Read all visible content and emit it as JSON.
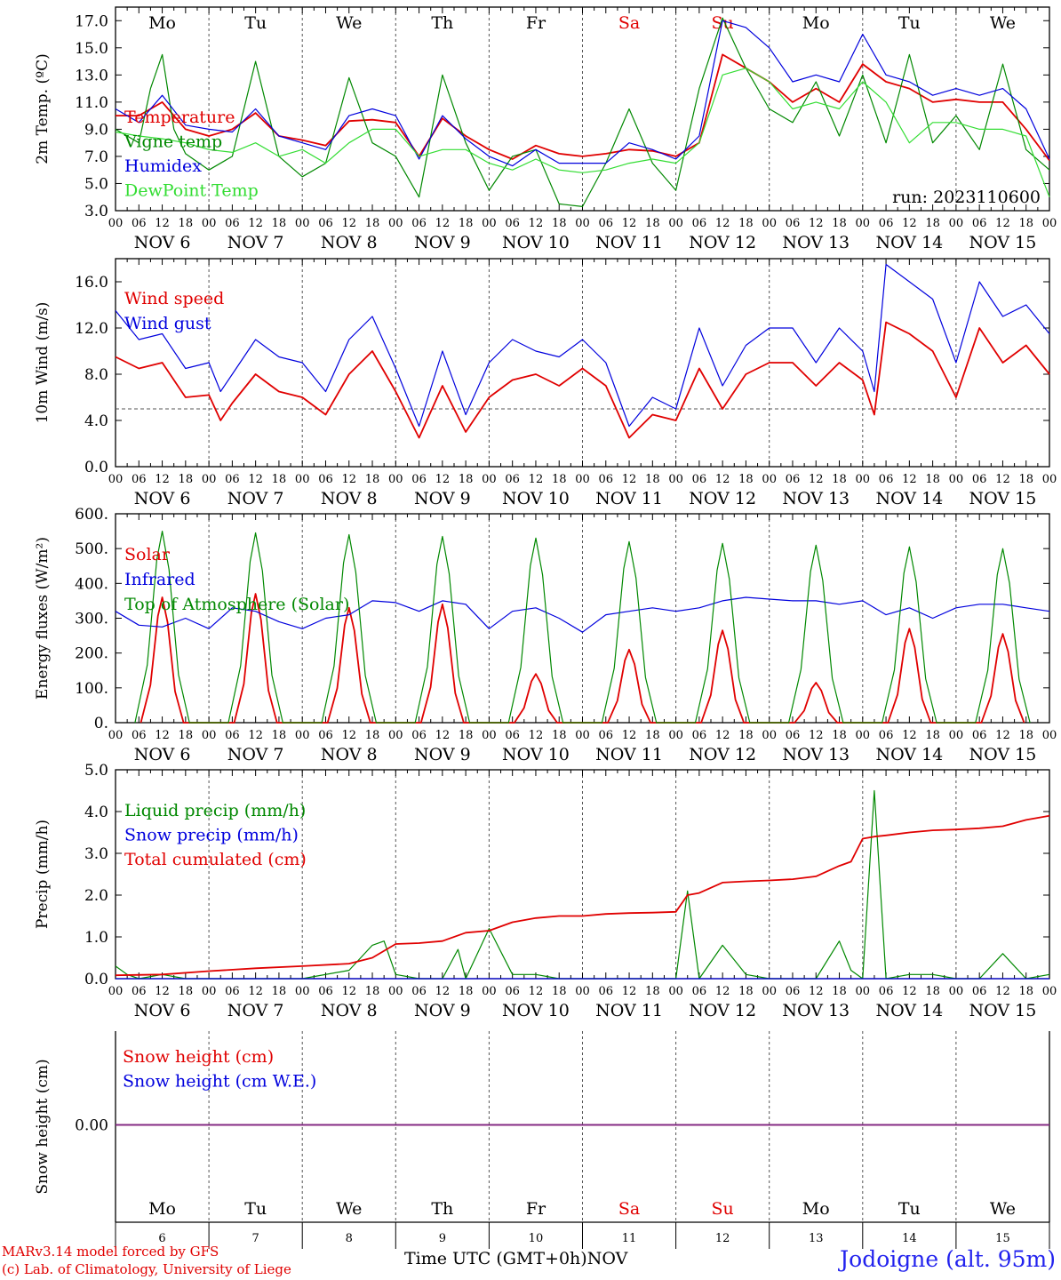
{
  "footer": {
    "credit_line1": "MARv3.14 model forced by GFS",
    "credit_line2": "(c) Lab. of Climatology, University of Liege",
    "x_title": "Time UTC (GMT+0h)",
    "x_month": "NOV",
    "station": "Jodoigne (alt. 95m)"
  },
  "colors": {
    "red": "#e00000",
    "green": "#008800",
    "blue": "#0000dd",
    "lightgreen": "#33dd33",
    "grid": "#555555"
  },
  "weekdays": [
    "Mo",
    "Tu",
    "We",
    "Th",
    "Fr",
    "Sa",
    "Su",
    "Mo",
    "Tu",
    "We"
  ],
  "weekday_colors": [
    "#000000",
    "#000000",
    "#000000",
    "#000000",
    "#000000",
    "#e00000",
    "#e00000",
    "#000000",
    "#000000",
    "#000000"
  ],
  "date_labels": [
    "NOV  6",
    "NOV  7",
    "NOV  8",
    "NOV  9",
    "NOV 10",
    "NOV 11",
    "NOV 12",
    "NOV 13",
    "NOV 14",
    "NOV 15"
  ],
  "hour_labels": [
    "00",
    "06",
    "12",
    "18"
  ],
  "bottom_day_numbers": [
    "6",
    "7",
    "8",
    "9",
    "10",
    "11",
    "12",
    "13",
    "14",
    "15"
  ],
  "chart_data": [
    {
      "type": "line",
      "ylabel": "2m Temp. (ºC)",
      "ylim": [
        3.0,
        18.0
      ],
      "yticks": [
        "3.0",
        "5.0",
        "7.0",
        "9.0",
        "11.0",
        "13.0",
        "15.0",
        "17.0"
      ],
      "annotation": "run: 2023110600",
      "x_unit": "hours since NOV 6 00 UTC",
      "series": [
        {
          "name": "Temperature",
          "color": "#e00000",
          "x": [
            0,
            6,
            12,
            18,
            24,
            30,
            36,
            42,
            48,
            54,
            60,
            66,
            72,
            78,
            84,
            90,
            96,
            102,
            108,
            114,
            120,
            126,
            132,
            138,
            144,
            150,
            156,
            162,
            168,
            174,
            180,
            186,
            192,
            198,
            204,
            210,
            216,
            222,
            228,
            234,
            240
          ],
          "y": [
            10.0,
            10.0,
            11.0,
            9.0,
            8.5,
            9.0,
            10.2,
            8.5,
            8.2,
            7.8,
            9.6,
            9.7,
            9.5,
            7.0,
            9.8,
            8.5,
            7.5,
            6.8,
            7.8,
            7.2,
            7.0,
            7.2,
            7.5,
            7.4,
            7.0,
            8.0,
            14.5,
            13.5,
            12.5,
            11.0,
            12.0,
            11.0,
            13.8,
            12.5,
            12.0,
            11.0,
            11.2,
            11.0,
            11.0,
            9.0,
            6.7
          ]
        },
        {
          "name": "Vigne temp",
          "color": "#008800",
          "x": [
            0,
            6,
            9,
            12,
            15,
            18,
            24,
            30,
            36,
            42,
            48,
            54,
            60,
            66,
            72,
            78,
            84,
            90,
            96,
            102,
            108,
            114,
            120,
            126,
            132,
            138,
            144,
            150,
            156,
            162,
            168,
            174,
            180,
            186,
            192,
            198,
            204,
            210,
            216,
            222,
            228,
            234,
            240
          ],
          "y": [
            9.0,
            8.0,
            12.0,
            14.5,
            9.0,
            7.2,
            6.0,
            7.0,
            14.0,
            7.0,
            5.5,
            6.5,
            12.8,
            8.0,
            7.0,
            4.0,
            13.0,
            8.0,
            4.5,
            7.0,
            7.5,
            3.5,
            3.3,
            6.5,
            10.5,
            6.5,
            4.5,
            12.0,
            17.2,
            13.5,
            10.5,
            9.5,
            12.5,
            8.5,
            13.0,
            8.0,
            14.5,
            8.0,
            10.0,
            7.5,
            13.8,
            7.5,
            6.0
          ]
        },
        {
          "name": "Humidex",
          "color": "#0000dd",
          "x": [
            0,
            6,
            12,
            18,
            24,
            30,
            36,
            42,
            48,
            54,
            60,
            66,
            72,
            78,
            84,
            90,
            96,
            102,
            108,
            114,
            120,
            126,
            132,
            138,
            144,
            150,
            156,
            162,
            168,
            174,
            180,
            186,
            192,
            198,
            204,
            210,
            216,
            222,
            228,
            234,
            240
          ],
          "y": [
            10.5,
            9.5,
            11.5,
            9.3,
            9.0,
            8.8,
            10.5,
            8.5,
            8.0,
            7.5,
            10.0,
            10.5,
            10.0,
            6.8,
            10.0,
            8.3,
            7.0,
            6.3,
            7.5,
            6.5,
            6.5,
            6.5,
            8.0,
            7.5,
            6.8,
            8.5,
            17.0,
            16.5,
            15.0,
            12.5,
            13.0,
            12.5,
            16.0,
            13.0,
            12.5,
            11.5,
            12.0,
            11.5,
            12.0,
            10.5,
            6.8
          ]
        },
        {
          "name": "DewPoint Temp",
          "color": "#33dd33",
          "x": [
            0,
            6,
            12,
            18,
            24,
            30,
            36,
            42,
            48,
            54,
            60,
            66,
            72,
            78,
            84,
            90,
            96,
            102,
            108,
            114,
            120,
            126,
            132,
            138,
            144,
            150,
            156,
            162,
            168,
            174,
            180,
            186,
            192,
            198,
            204,
            210,
            216,
            222,
            228,
            234,
            240
          ],
          "y": [
            8.8,
            8.5,
            8.3,
            8.0,
            7.5,
            7.3,
            8.0,
            7.0,
            7.5,
            6.5,
            8.0,
            9.0,
            9.0,
            7.0,
            7.5,
            7.5,
            6.5,
            6.0,
            6.8,
            6.0,
            5.8,
            6.0,
            6.5,
            6.8,
            6.5,
            8.0,
            13.0,
            13.5,
            12.5,
            10.5,
            11.0,
            10.5,
            12.5,
            11.0,
            8.0,
            9.5,
            9.5,
            9.0,
            9.0,
            8.5,
            4.0
          ]
        }
      ]
    },
    {
      "type": "line",
      "ylabel": "10m Wind (m/s)",
      "ylim": [
        0.0,
        18.0
      ],
      "yticks": [
        "0.0",
        "4.0",
        "8.0",
        "12.0",
        "16.0"
      ],
      "reference_line": 5.0,
      "series": [
        {
          "name": "Wind speed",
          "color": "#e00000",
          "x": [
            0,
            6,
            12,
            18,
            24,
            27,
            30,
            36,
            42,
            48,
            54,
            60,
            66,
            72,
            78,
            84,
            90,
            96,
            102,
            108,
            114,
            120,
            126,
            132,
            138,
            144,
            150,
            156,
            162,
            168,
            174,
            180,
            186,
            192,
            195,
            198,
            204,
            210,
            216,
            222,
            228,
            234,
            240
          ],
          "y": [
            9.5,
            8.5,
            9.0,
            6.0,
            6.2,
            4.0,
            5.5,
            8.0,
            6.5,
            6.0,
            4.5,
            8.0,
            10.0,
            6.5,
            2.5,
            7.0,
            3.0,
            6.0,
            7.5,
            8.0,
            7.0,
            8.5,
            7.0,
            2.5,
            4.5,
            4.0,
            8.5,
            5.0,
            8.0,
            9.0,
            9.0,
            7.0,
            9.0,
            7.5,
            4.5,
            12.5,
            11.5,
            10.0,
            6.0,
            12.0,
            9.0,
            10.5,
            8.0
          ]
        },
        {
          "name": "Wind gust",
          "color": "#0000dd",
          "x": [
            0,
            6,
            12,
            18,
            24,
            27,
            30,
            36,
            42,
            48,
            54,
            60,
            66,
            72,
            78,
            84,
            90,
            96,
            102,
            108,
            114,
            120,
            126,
            132,
            138,
            144,
            150,
            156,
            162,
            168,
            174,
            180,
            186,
            192,
            195,
            198,
            204,
            210,
            216,
            222,
            228,
            234,
            240
          ],
          "y": [
            13.5,
            11.0,
            11.5,
            8.5,
            9.0,
            6.5,
            8.0,
            11.0,
            9.5,
            9.0,
            6.5,
            11.0,
            13.0,
            8.5,
            3.5,
            10.0,
            4.5,
            9.0,
            11.0,
            10.0,
            9.5,
            11.0,
            9.0,
            3.5,
            6.0,
            5.0,
            12.0,
            7.0,
            10.5,
            12.0,
            12.0,
            9.0,
            12.0,
            10.0,
            6.5,
            17.5,
            16.0,
            14.5,
            9.0,
            16.0,
            13.0,
            14.0,
            11.5
          ]
        }
      ]
    },
    {
      "type": "line",
      "ylabel": "Energy fluxes (W/m²)",
      "ylim": [
        0,
        600
      ],
      "yticks": [
        "0.",
        "100.",
        "200.",
        "300.",
        "400.",
        "500.",
        "600."
      ],
      "series": [
        {
          "name": "Solar",
          "color": "#e00000",
          "daily_peaks": [
            360,
            370,
            330,
            340,
            140,
            210,
            265,
            115,
            270,
            255
          ]
        },
        {
          "name": "Infrared",
          "color": "#0000dd",
          "x": [
            0,
            6,
            12,
            18,
            24,
            30,
            36,
            42,
            48,
            54,
            60,
            66,
            72,
            78,
            84,
            90,
            96,
            102,
            108,
            114,
            120,
            126,
            132,
            138,
            144,
            150,
            156,
            162,
            168,
            174,
            180,
            186,
            192,
            198,
            204,
            210,
            216,
            222,
            228,
            234,
            240
          ],
          "y": [
            320,
            280,
            275,
            300,
            270,
            330,
            320,
            290,
            270,
            300,
            310,
            350,
            345,
            320,
            350,
            340,
            270,
            320,
            330,
            300,
            260,
            310,
            320,
            330,
            320,
            330,
            350,
            360,
            355,
            350,
            350,
            340,
            350,
            310,
            330,
            300,
            330,
            340,
            340,
            330,
            320
          ]
        },
        {
          "name": "Top of Atmosphere (Solar)",
          "color": "#008800",
          "daily_peaks": [
            550,
            545,
            540,
            535,
            530,
            520,
            515,
            510,
            505,
            500
          ]
        }
      ]
    },
    {
      "type": "line",
      "ylabel": "Precip (mm/h)",
      "ylim": [
        0.0,
        5.0
      ],
      "yticks": [
        "0.0",
        "1.0",
        "2.0",
        "3.0",
        "4.0",
        "5.0"
      ],
      "series": [
        {
          "name": "Liquid precip (mm/h)",
          "color": "#008800",
          "x": [
            0,
            3,
            6,
            12,
            18,
            24,
            36,
            48,
            60,
            66,
            69,
            72,
            78,
            84,
            88,
            90,
            96,
            102,
            108,
            114,
            120,
            126,
            132,
            140,
            144,
            147,
            150,
            156,
            162,
            168,
            174,
            180,
            186,
            189,
            192,
            195,
            198,
            204,
            210,
            216,
            222,
            228,
            234,
            240
          ],
          "y": [
            0.3,
            0.1,
            0.0,
            0.1,
            0.0,
            0.0,
            0.0,
            0.0,
            0.2,
            0.8,
            0.9,
            0.1,
            0.0,
            0.0,
            0.7,
            0.0,
            1.2,
            0.1,
            0.1,
            0.0,
            0.0,
            0.0,
            0.0,
            0.0,
            0.0,
            2.1,
            0.0,
            0.8,
            0.1,
            0.0,
            0.0,
            0.0,
            0.9,
            0.2,
            0.0,
            4.5,
            0.0,
            0.1,
            0.1,
            0.0,
            0.0,
            0.6,
            0.0,
            0.1
          ]
        },
        {
          "name": "Snow precip (mm/h)",
          "color": "#0000dd",
          "x": [
            0,
            240
          ],
          "y": [
            0.0,
            0.0
          ]
        },
        {
          "name": "Total cumulated (cm)",
          "color": "#e00000",
          "x": [
            0,
            12,
            24,
            36,
            48,
            60,
            66,
            72,
            78,
            84,
            90,
            96,
            102,
            108,
            114,
            120,
            126,
            132,
            138,
            144,
            147,
            150,
            156,
            162,
            168,
            174,
            180,
            186,
            189,
            192,
            195,
            198,
            204,
            210,
            216,
            222,
            228,
            234,
            240
          ],
          "y": [
            0.08,
            0.1,
            0.18,
            0.25,
            0.3,
            0.36,
            0.5,
            0.83,
            0.85,
            0.9,
            1.1,
            1.15,
            1.35,
            1.45,
            1.5,
            1.5,
            1.55,
            1.57,
            1.58,
            1.6,
            2.0,
            2.05,
            2.3,
            2.33,
            2.35,
            2.38,
            2.45,
            2.7,
            2.8,
            3.35,
            3.4,
            3.43,
            3.5,
            3.55,
            3.57,
            3.6,
            3.65,
            3.8,
            3.9
          ]
        }
      ]
    },
    {
      "type": "line",
      "ylabel": "Snow height (cm)",
      "yticks": [
        "0.00"
      ],
      "series": [
        {
          "name": "Snow height (cm)",
          "color": "#e00000",
          "x": [
            0,
            240
          ],
          "y": [
            0.0,
            0.0
          ]
        },
        {
          "name": "Snow height (cm W.E.)",
          "color": "#0000dd",
          "x": [
            0,
            240
          ],
          "y": [
            0.0,
            0.0
          ]
        }
      ]
    }
  ]
}
